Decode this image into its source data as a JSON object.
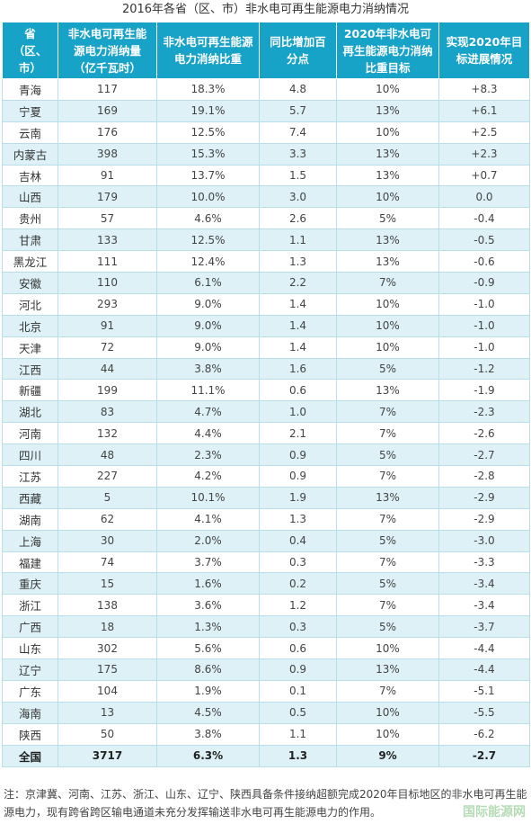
{
  "title": "2016年各省（区、市）非水电可再生能源电力消纳情况",
  "headers": [
    "省（区、市）",
    "非水电可再生能源电力消纳量（亿千瓦时）",
    "非水电可再生能源电力消纳比重",
    "同比增加百分点",
    "2020年非水电可再生能源电力消纳比重目标",
    "实现2020年目标进展情况"
  ],
  "rows": [
    [
      "青海",
      "117",
      "18.3%",
      "4.8",
      "10%",
      "+8.3"
    ],
    [
      "宁夏",
      "169",
      "19.1%",
      "5.7",
      "13%",
      "+6.1"
    ],
    [
      "云南",
      "176",
      "12.5%",
      "7.4",
      "10%",
      "+2.5"
    ],
    [
      "内蒙古",
      "398",
      "15.3%",
      "3.3",
      "13%",
      "+2.3"
    ],
    [
      "吉林",
      "91",
      "13.7%",
      "1.5",
      "13%",
      "+0.7"
    ],
    [
      "山西",
      "179",
      "10.0%",
      "3.0",
      "10%",
      "0.0"
    ],
    [
      "贵州",
      "57",
      "4.6%",
      "2.6",
      "5%",
      "-0.4"
    ],
    [
      "甘肃",
      "133",
      "12.5%",
      "1.1",
      "13%",
      "-0.5"
    ],
    [
      "黑龙江",
      "111",
      "12.4%",
      "1.3",
      "13%",
      "-0.6"
    ],
    [
      "安徽",
      "110",
      "6.1%",
      "2.2",
      "7%",
      "-0.9"
    ],
    [
      "河北",
      "293",
      "9.0%",
      "1.4",
      "10%",
      "-1.0"
    ],
    [
      "北京",
      "91",
      "9.0%",
      "1.4",
      "10%",
      "-1.0"
    ],
    [
      "天津",
      "72",
      "9.0%",
      "1.4",
      "10%",
      "-1.0"
    ],
    [
      "江西",
      "44",
      "3.8%",
      "1.6",
      "5%",
      "-1.2"
    ],
    [
      "新疆",
      "199",
      "11.1%",
      "0.6",
      "13%",
      "-1.9"
    ],
    [
      "湖北",
      "83",
      "4.7%",
      "1.0",
      "7%",
      "-2.3"
    ],
    [
      "河南",
      "132",
      "4.4%",
      "2.1",
      "7%",
      "-2.6"
    ],
    [
      "四川",
      "48",
      "2.3%",
      "0.9",
      "5%",
      "-2.7"
    ],
    [
      "江苏",
      "227",
      "4.2%",
      "0.9",
      "7%",
      "-2.8"
    ],
    [
      "西藏",
      "5",
      "10.1%",
      "1.9",
      "13%",
      "-2.9"
    ],
    [
      "湖南",
      "62",
      "4.1%",
      "1.3",
      "7%",
      "-2.9"
    ],
    [
      "上海",
      "30",
      "2.0%",
      "0.4",
      "5%",
      "-3.0"
    ],
    [
      "福建",
      "74",
      "3.7%",
      "0.3",
      "7%",
      "-3.3"
    ],
    [
      "重庆",
      "15",
      "1.6%",
      "0.2",
      "5%",
      "-3.4"
    ],
    [
      "浙江",
      "138",
      "3.6%",
      "1.2",
      "7%",
      "-3.4"
    ],
    [
      "广西",
      "18",
      "1.3%",
      "0.3",
      "5%",
      "-3.7"
    ],
    [
      "山东",
      "302",
      "5.6%",
      "0.6",
      "10%",
      "-4.4"
    ],
    [
      "辽宁",
      "175",
      "8.6%",
      "0.9",
      "13%",
      "-4.4"
    ],
    [
      "广东",
      "104",
      "1.9%",
      "0.1",
      "7%",
      "-5.1"
    ],
    [
      "海南",
      "13",
      "4.5%",
      "0.5",
      "10%",
      "-5.5"
    ],
    [
      "陕西",
      "50",
      "3.8%",
      "1.1",
      "10%",
      "-6.2"
    ]
  ],
  "total": [
    "全国",
    "3717",
    "6.3%",
    "1.3",
    "9%",
    "-2.7"
  ],
  "note": "注：京津冀、河南、江苏、浙江、山东、辽宁、陕西具备条件接纳超额完成2020年目标地区的非水电可再生能源电力，现有跨省跨区输电通道未充分发挥输送非水电可再生能源电力的作用。",
  "watermark": "国际能源网",
  "colors": {
    "header_bg": "#17a2c8",
    "stripe_bg": "#ddf1f6",
    "border": "#b8dfe9"
  }
}
